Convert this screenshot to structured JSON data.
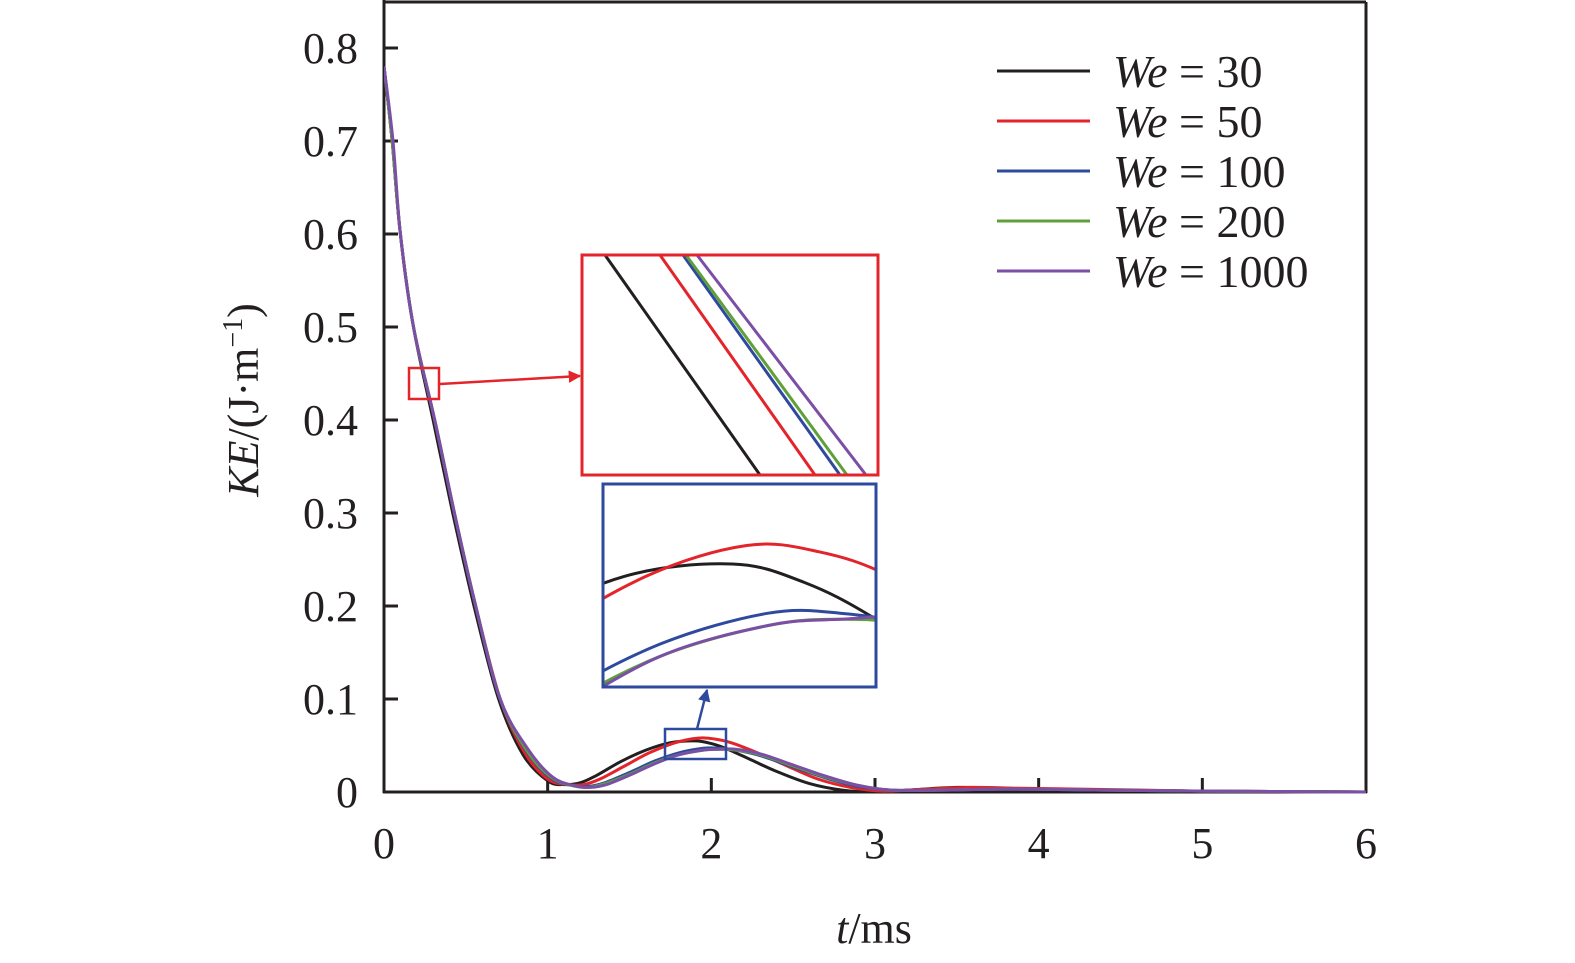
{
  "chart_data": {
    "type": "line",
    "title": "",
    "xlabel": "t/ms",
    "xlabel_italic_part": "t",
    "xlabel_unit": "/ms",
    "ylabel": "KE/(J·m⁻¹)",
    "ylabel_italic_part": "KE",
    "ylabel_unit": "/(J·m",
    "ylabel_exp": "−1",
    "ylabel_close": ")",
    "xlim": [
      0,
      6
    ],
    "ylim": [
      0,
      0.8
    ],
    "xticks": [
      "0",
      "1",
      "2",
      "3",
      "4",
      "5",
      "6"
    ],
    "yticks": [
      "0",
      "0.1",
      "0.2",
      "0.3",
      "0.4",
      "0.5",
      "0.6",
      "0.7",
      "0.8"
    ],
    "grid": false,
    "legend_position": "upper right",
    "series": [
      {
        "name": "We = 30",
        "color": "#231f20",
        "x": [
          0,
          0.05,
          0.1,
          0.18,
          0.3,
          0.42,
          0.55,
          0.7,
          0.85,
          1.0,
          1.1,
          1.2,
          1.3,
          1.45,
          1.6,
          1.75,
          1.9,
          2.0,
          2.1,
          2.25,
          2.4,
          2.6,
          2.8,
          3.0,
          3.2,
          3.5,
          3.8,
          4.2,
          5.0,
          6.0
        ],
        "y": [
          0.78,
          0.7,
          0.6,
          0.5,
          0.4,
          0.3,
          0.2,
          0.1,
          0.04,
          0.012,
          0.008,
          0.01,
          0.018,
          0.033,
          0.045,
          0.053,
          0.055,
          0.052,
          0.046,
          0.034,
          0.022,
          0.009,
          0.002,
          0.0,
          0.002,
          0.005,
          0.004,
          0.002,
          0.001,
          0.0
        ]
      },
      {
        "name": "We = 50",
        "color": "#e3242b",
        "x": [
          0,
          0.05,
          0.1,
          0.18,
          0.31,
          0.43,
          0.56,
          0.71,
          0.86,
          1.0,
          1.12,
          1.22,
          1.32,
          1.47,
          1.62,
          1.78,
          1.92,
          2.02,
          2.12,
          2.27,
          2.45,
          2.65,
          2.85,
          3.05,
          3.3,
          3.6,
          3.9,
          4.3,
          5.0,
          6.0
        ],
        "y": [
          0.78,
          0.7,
          0.6,
          0.5,
          0.4,
          0.3,
          0.2,
          0.1,
          0.042,
          0.014,
          0.008,
          0.008,
          0.014,
          0.028,
          0.042,
          0.053,
          0.058,
          0.057,
          0.053,
          0.043,
          0.029,
          0.014,
          0.005,
          0.001,
          0.003,
          0.005,
          0.004,
          0.003,
          0.001,
          0.0
        ]
      },
      {
        "name": "We = 100",
        "color": "#2e4a9e",
        "x": [
          0,
          0.05,
          0.1,
          0.18,
          0.31,
          0.43,
          0.56,
          0.71,
          0.87,
          1.02,
          1.15,
          1.25,
          1.35,
          1.5,
          1.65,
          1.8,
          1.95,
          2.05,
          2.15,
          2.3,
          2.5,
          2.7,
          2.9,
          3.1,
          3.4,
          3.7,
          4.0,
          4.4,
          5.0,
          6.0
        ],
        "y": [
          0.78,
          0.7,
          0.6,
          0.5,
          0.4,
          0.3,
          0.2,
          0.1,
          0.044,
          0.015,
          0.007,
          0.006,
          0.01,
          0.021,
          0.033,
          0.042,
          0.047,
          0.047,
          0.045,
          0.039,
          0.027,
          0.015,
          0.006,
          0.002,
          0.002,
          0.003,
          0.003,
          0.002,
          0.001,
          0.0
        ]
      },
      {
        "name": "We = 200",
        "color": "#5fa03a",
        "x": [
          0,
          0.05,
          0.1,
          0.18,
          0.31,
          0.43,
          0.56,
          0.71,
          0.87,
          1.02,
          1.15,
          1.25,
          1.35,
          1.5,
          1.65,
          1.8,
          1.95,
          2.05,
          2.15,
          2.3,
          2.5,
          2.7,
          2.9,
          3.1,
          3.4,
          3.7,
          4.0,
          4.4,
          5.0,
          6.0
        ],
        "y": [
          0.78,
          0.7,
          0.6,
          0.5,
          0.4,
          0.3,
          0.2,
          0.1,
          0.045,
          0.016,
          0.007,
          0.005,
          0.009,
          0.019,
          0.031,
          0.04,
          0.045,
          0.046,
          0.045,
          0.04,
          0.028,
          0.016,
          0.007,
          0.002,
          0.002,
          0.003,
          0.003,
          0.002,
          0.001,
          0.0
        ]
      },
      {
        "name": "We = 1000",
        "color": "#7b4fa6",
        "x": [
          0,
          0.055,
          0.1,
          0.18,
          0.31,
          0.43,
          0.56,
          0.71,
          0.88,
          1.03,
          1.16,
          1.26,
          1.36,
          1.5,
          1.65,
          1.8,
          1.95,
          2.05,
          2.15,
          2.3,
          2.5,
          2.7,
          2.9,
          3.1,
          3.4,
          3.7,
          4.0,
          4.4,
          5.0,
          6.0
        ],
        "y": [
          0.78,
          0.7,
          0.6,
          0.5,
          0.4,
          0.3,
          0.2,
          0.1,
          0.046,
          0.016,
          0.007,
          0.005,
          0.008,
          0.018,
          0.03,
          0.04,
          0.045,
          0.046,
          0.046,
          0.041,
          0.029,
          0.017,
          0.007,
          0.002,
          0.002,
          0.003,
          0.003,
          0.002,
          0.001,
          0.0
        ]
      }
    ],
    "annotations": [
      {
        "type": "zoom-box",
        "color": "#e3242b",
        "region_x": [
          0.15,
          0.34
        ],
        "region_y": [
          0.42,
          0.455
        ],
        "label": "inset of early descent (~t=0.25 ms, KE≈0.44)"
      },
      {
        "type": "zoom-box",
        "color": "#2e4a9e",
        "region_x": [
          1.72,
          2.1
        ],
        "region_y": [
          0.035,
          0.068
        ],
        "label": "inset of second peak (~t=1.9 ms)"
      }
    ]
  },
  "legend": {
    "items": [
      {
        "prefix": "We",
        "suffix": " = 30",
        "color": "#231f20"
      },
      {
        "prefix": "We",
        "suffix": " = 50",
        "color": "#e3242b"
      },
      {
        "prefix": "We",
        "suffix": " = 100",
        "color": "#2e4a9e"
      },
      {
        "prefix": "We",
        "suffix": " = 200",
        "color": "#5fa03a"
      },
      {
        "prefix": "We",
        "suffix": " = 1000",
        "color": "#7b4fa6"
      }
    ]
  },
  "colors": {
    "axis": "#231f20",
    "inset_red": "#e3242b",
    "inset_blue": "#2e4a9e"
  }
}
